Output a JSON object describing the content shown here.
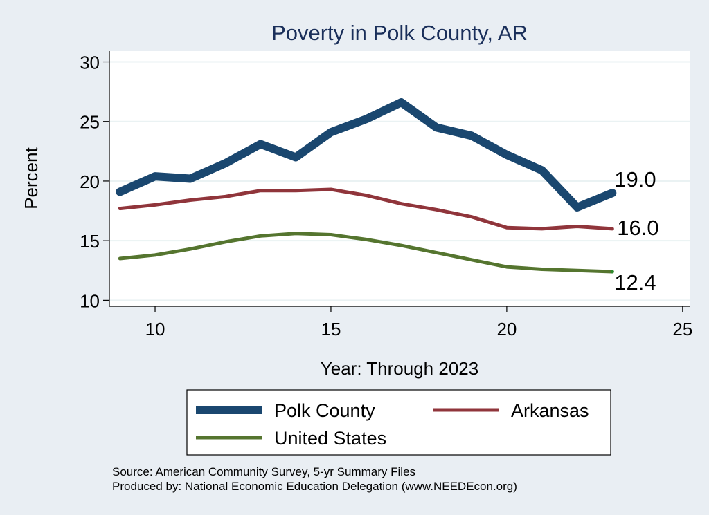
{
  "chart_data": {
    "type": "line",
    "title": "Poverty in Polk County, AR",
    "xlabel": "Year: Through 2023",
    "ylabel": "Percent",
    "xlim": [
      8.7,
      25.2
    ],
    "ylim": [
      9.5,
      30.9
    ],
    "x_ticks": [
      10,
      15,
      20,
      25
    ],
    "y_ticks": [
      10,
      15,
      20,
      25,
      30
    ],
    "x": [
      9,
      10,
      11,
      12,
      13,
      14,
      15,
      16,
      17,
      18,
      19,
      20,
      21,
      22,
      23
    ],
    "series": [
      {
        "name": "Polk County",
        "color": "#1a476f",
        "values": [
          19.1,
          20.4,
          20.2,
          21.5,
          23.1,
          22.0,
          24.1,
          25.2,
          26.6,
          24.5,
          23.8,
          22.2,
          20.9,
          17.8,
          19.0
        ],
        "end_label": "19.0"
      },
      {
        "name": "Arkansas",
        "color": "#90353b",
        "values": [
          17.7,
          18.0,
          18.4,
          18.7,
          19.2,
          19.2,
          19.3,
          18.8,
          18.1,
          17.6,
          17.0,
          16.1,
          16.0,
          16.2,
          16.0
        ],
        "end_label": "16.0"
      },
      {
        "name": "United States",
        "color": "#55752f",
        "values": [
          13.5,
          13.8,
          14.3,
          14.9,
          15.4,
          15.6,
          15.5,
          15.1,
          14.6,
          14.0,
          13.4,
          12.8,
          12.6,
          12.5,
          12.4
        ],
        "end_label": "12.4"
      }
    ],
    "legend_position": "bottom",
    "grid": true
  },
  "footer": {
    "source": "Source: American Community Survey, 5-yr Summary Files",
    "produced": "Produced by: National Economic Education Delegation (www.NEEDEcon.org)"
  }
}
